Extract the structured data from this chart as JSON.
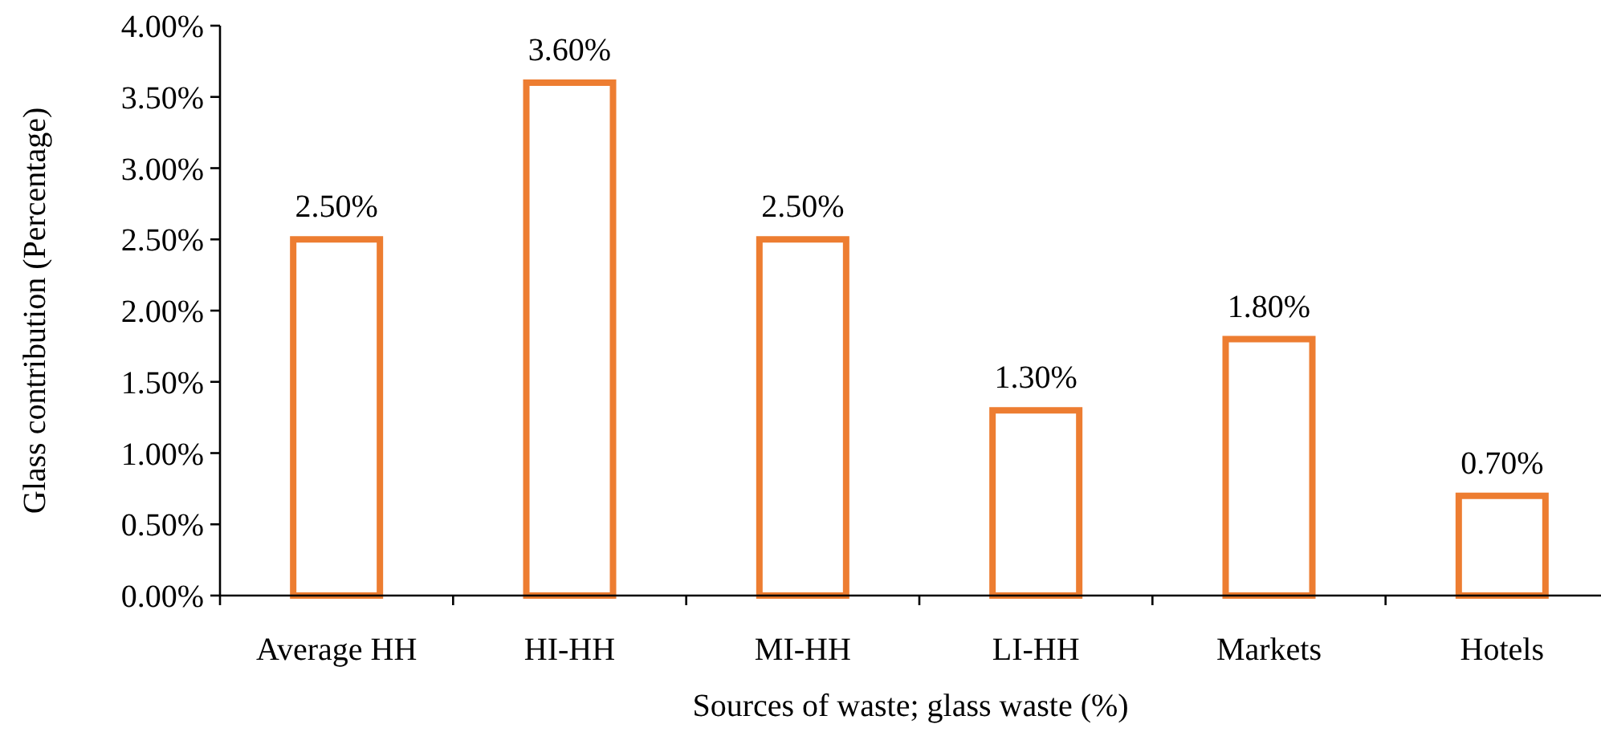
{
  "chart_data": {
    "type": "bar",
    "xlabel": "Sources of waste; glass waste (%)",
    "ylabel": "Glass contribution (Percentage)",
    "categories": [
      "Average HH",
      "HI-HH",
      "MI-HH",
      "LI-HH",
      "Markets",
      "Hotels"
    ],
    "values": [
      2.5,
      3.6,
      2.5,
      1.3,
      1.8,
      0.7
    ],
    "value_labels": [
      "2.50%",
      "3.60%",
      "2.50%",
      "1.30%",
      "1.80%",
      "0.70%"
    ],
    "color": "#ed7d31",
    "ylim": [
      0,
      4
    ],
    "yticks": [
      {
        "value": 0,
        "label": "0.00%"
      },
      {
        "value": 0.5,
        "label": "0.50%"
      },
      {
        "value": 1,
        "label": "1.00%"
      },
      {
        "value": 1.5,
        "label": "1.50%"
      },
      {
        "value": 2,
        "label": "2.00%"
      },
      {
        "value": 2.5,
        "label": "2.50%"
      },
      {
        "value": 3,
        "label": "3.00%"
      },
      {
        "value": 3.5,
        "label": "3.50%"
      },
      {
        "value": 4,
        "label": "4.00%"
      }
    ],
    "grid": false
  }
}
